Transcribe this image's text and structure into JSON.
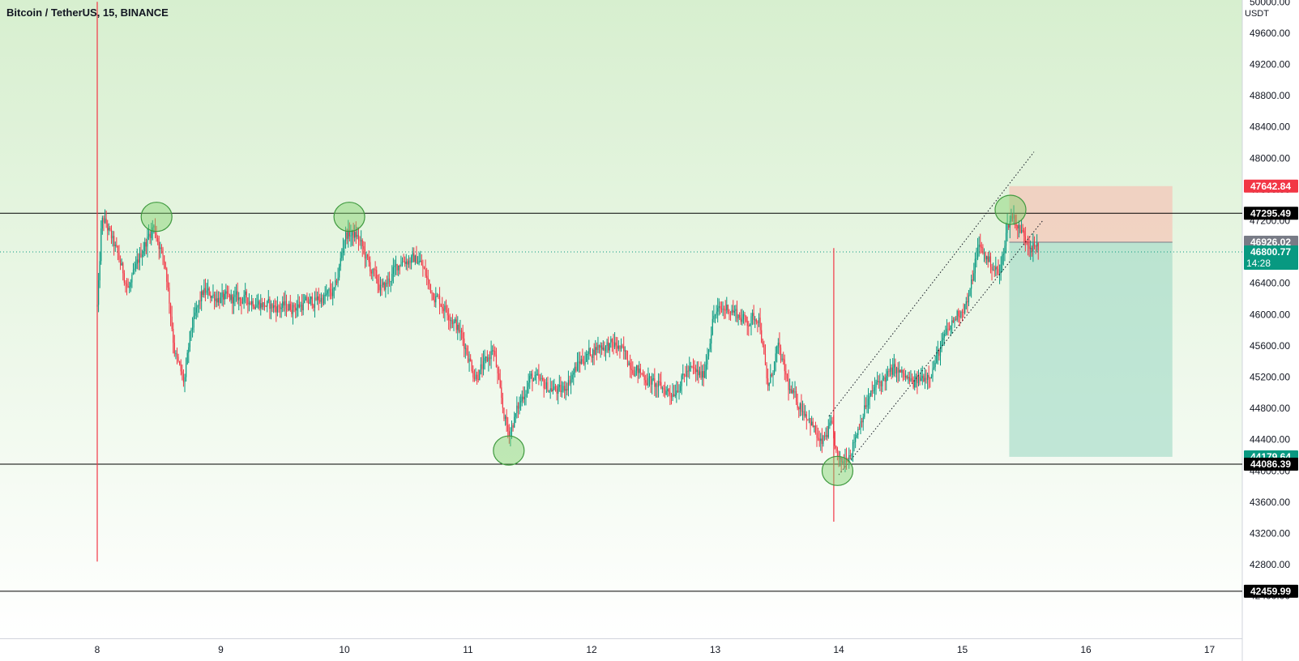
{
  "header": {
    "symbol_title": "Bitcoin / TetherUS, 15, BINANCE"
  },
  "chart_data": {
    "type": "candlestick",
    "title": "Bitcoin / TetherUS, 15, BINANCE",
    "currency_unit": "USDT",
    "ylim": [
      42400,
      50000
    ],
    "xlim": [
      7.0,
      17.0
    ],
    "y_ticks": [
      "50000.00",
      "49600.00",
      "49200.00",
      "48800.00",
      "48400.00",
      "48000.00",
      "47600.00",
      "47200.00",
      "46800.00",
      "46400.00",
      "46000.00",
      "45600.00",
      "45200.00",
      "44800.00",
      "44400.00",
      "44000.00",
      "43600.00",
      "43200.00",
      "42800.00",
      "42400.00"
    ],
    "y_tick_values": [
      50000,
      49600,
      49200,
      48800,
      48400,
      48000,
      47600,
      47200,
      46800,
      46400,
      46000,
      45600,
      45200,
      44800,
      44400,
      44000,
      43600,
      43200,
      42800,
      42400
    ],
    "x_ticks": [
      "8",
      "9",
      "10",
      "11",
      "12",
      "13",
      "14",
      "15",
      "16",
      "17"
    ],
    "x_tick_values": [
      8,
      9,
      10,
      11,
      12,
      13,
      14,
      15,
      16,
      17
    ],
    "horizontal_levels": [
      {
        "label": "47295.49",
        "value": 47295.49,
        "color": "#000000"
      },
      {
        "label": "44086.39",
        "value": 44086.39,
        "color": "#000000"
      },
      {
        "label": "42459.99",
        "value": 42459.99,
        "color": "#000000"
      }
    ],
    "price_badges": [
      {
        "label": "47642.84",
        "value": 47642.84,
        "color": "#f23645"
      },
      {
        "label": "46926.02",
        "value": 46926.02,
        "color": "#787b86"
      },
      {
        "label": "46800.77",
        "value": 46800.77,
        "color": "#089981",
        "sub": "14:28"
      },
      {
        "label": "44179.64",
        "value": 44179.64,
        "color": "#089981"
      }
    ],
    "last_price": 46800.77,
    "countdown": "14:28",
    "position": {
      "x_start": 15.38,
      "x_end": 16.7,
      "entry": 46926.02,
      "stop": 47642.84,
      "target": 44179.64
    },
    "channel_lines": [
      {
        "x1": 13.92,
        "y1": 44700,
        "x2": 15.58,
        "y2": 48080
      },
      {
        "x1": 14.0,
        "y1": 43950,
        "x2": 15.65,
        "y2": 47200
      }
    ],
    "marker_circles": [
      {
        "x": 8.48,
        "y": 47250
      },
      {
        "x": 10.04,
        "y": 47250
      },
      {
        "x": 11.33,
        "y": 44260
      },
      {
        "x": 13.99,
        "y": 44000
      },
      {
        "x": 15.39,
        "y": 47340
      }
    ],
    "spike_wicks": [
      {
        "x": 8.0,
        "high": 50000,
        "low": 42840
      },
      {
        "x": 13.96,
        "high": 46850,
        "low": 43350
      }
    ],
    "anchors": [
      [
        8.0,
        46100
      ],
      [
        8.03,
        47300
      ],
      [
        8.15,
        46800
      ],
      [
        8.25,
        46300
      ],
      [
        8.35,
        46800
      ],
      [
        8.45,
        47150
      ],
      [
        8.55,
        46600
      ],
      [
        8.62,
        45500
      ],
      [
        8.7,
        45100
      ],
      [
        8.75,
        45800
      ],
      [
        8.85,
        46300
      ],
      [
        9.0,
        46200
      ],
      [
        9.2,
        46200
      ],
      [
        9.4,
        46100
      ],
      [
        9.6,
        46100
      ],
      [
        9.8,
        46200
      ],
      [
        9.92,
        46300
      ],
      [
        10.0,
        47050
      ],
      [
        10.1,
        47000
      ],
      [
        10.2,
        46600
      ],
      [
        10.3,
        46300
      ],
      [
        10.45,
        46700
      ],
      [
        10.6,
        46700
      ],
      [
        10.7,
        46300
      ],
      [
        10.85,
        46000
      ],
      [
        10.95,
        45700
      ],
      [
        11.05,
        45200
      ],
      [
        11.15,
        45400
      ],
      [
        11.2,
        45600
      ],
      [
        11.25,
        45000
      ],
      [
        11.32,
        44450
      ],
      [
        11.42,
        44900
      ],
      [
        11.5,
        45200
      ],
      [
        11.6,
        45100
      ],
      [
        11.75,
        45000
      ],
      [
        11.9,
        45400
      ],
      [
        12.05,
        45600
      ],
      [
        12.2,
        45600
      ],
      [
        12.35,
        45300
      ],
      [
        12.5,
        45100
      ],
      [
        12.65,
        45000
      ],
      [
        12.78,
        45300
      ],
      [
        12.9,
        45200
      ],
      [
        12.98,
        46000
      ],
      [
        13.1,
        46100
      ],
      [
        13.25,
        45900
      ],
      [
        13.35,
        46000
      ],
      [
        13.42,
        45000
      ],
      [
        13.5,
        45600
      ],
      [
        13.6,
        45000
      ],
      [
        13.75,
        44700
      ],
      [
        13.85,
        44300
      ],
      [
        13.93,
        44600
      ],
      [
        14.0,
        44050
      ],
      [
        14.1,
        44300
      ],
      [
        14.2,
        44800
      ],
      [
        14.3,
        45100
      ],
      [
        14.45,
        45300
      ],
      [
        14.6,
        45100
      ],
      [
        14.75,
        45300
      ],
      [
        14.85,
        45700
      ],
      [
        14.95,
        46000
      ],
      [
        15.05,
        46200
      ],
      [
        15.12,
        46900
      ],
      [
        15.2,
        46700
      ],
      [
        15.3,
        46500
      ],
      [
        15.35,
        47100
      ],
      [
        15.4,
        47300
      ],
      [
        15.45,
        47100
      ],
      [
        15.55,
        46900
      ],
      [
        15.62,
        46800
      ]
    ]
  }
}
